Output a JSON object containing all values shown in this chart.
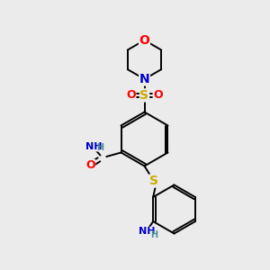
{
  "bg_color": "#ebebeb",
  "bond_color": "#000000",
  "atom_colors": {
    "O": "#ff0000",
    "N": "#0000cc",
    "S": "#ccaa00",
    "H": "#4a9090"
  },
  "figsize": [
    3.0,
    3.0
  ],
  "dpi": 100
}
